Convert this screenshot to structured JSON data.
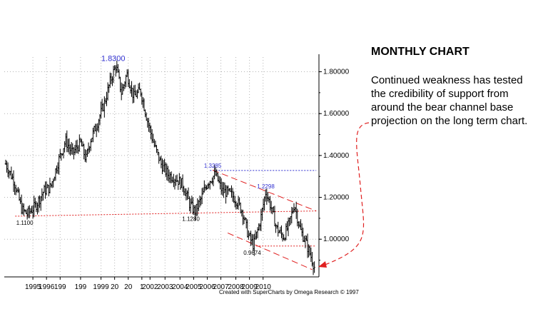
{
  "panel": {
    "title": "MONTHLY CHART",
    "body": "Continued weakness has tested the credibility of support from around the bear channel base projection on the long term chart."
  },
  "credit": "Created with SuperCharts by Omega Research © 1997",
  "colors": {
    "price": "#000000",
    "grid": "#b4b4b4",
    "channel": "#e02020",
    "blue": "#3030d0"
  },
  "chart_data": {
    "type": "bar",
    "style": "OHLC monthly bars",
    "title": "",
    "xlabel": "",
    "ylabel": "",
    "ylim": [
      0.82,
      1.87
    ],
    "grid": true,
    "y_ticks": [
      {
        "value": 1.8,
        "label": "1.80000"
      },
      {
        "value": 1.6,
        "label": "1.60000"
      },
      {
        "value": 1.4,
        "label": "1.40000"
      },
      {
        "value": 1.2,
        "label": "1.20000"
      },
      {
        "value": 1.0,
        "label": "1.00000"
      }
    ],
    "x_ticks": [
      {
        "year": 1995,
        "label": "1995"
      },
      {
        "year": 1996,
        "label": "1996"
      },
      {
        "year": 1997,
        "label": "199"
      },
      {
        "year": 1998.5,
        "label": "199"
      },
      {
        "year": 2000,
        "label": "1999"
      },
      {
        "year": 2001,
        "label": "20"
      },
      {
        "year": 2002,
        "label": "20"
      },
      {
        "year": 2003,
        "label": "1"
      },
      {
        "year": 2003.6,
        "label": "2002"
      },
      {
        "year": 2004.7,
        "label": "2003"
      },
      {
        "year": 2005.8,
        "label": "2004"
      },
      {
        "year": 2006.8,
        "label": "2005"
      },
      {
        "year": 2007.8,
        "label": "2006"
      },
      {
        "year": 2008.8,
        "label": "2007"
      },
      {
        "year": 2009.9,
        "label": "2008"
      },
      {
        "year": 2010.9,
        "label": "2009"
      },
      {
        "year": 2011.9,
        "label": "2010"
      }
    ],
    "price_path": [
      [
        1993.0,
        1.36
      ],
      [
        1993.6,
        1.28
      ],
      [
        1994.2,
        1.14
      ],
      [
        1994.6,
        1.12
      ],
      [
        1995.2,
        1.16
      ],
      [
        1995.8,
        1.23
      ],
      [
        1996.3,
        1.25
      ],
      [
        1996.9,
        1.38
      ],
      [
        1997.4,
        1.47
      ],
      [
        1997.9,
        1.41
      ],
      [
        1998.5,
        1.46
      ],
      [
        1998.9,
        1.38
      ],
      [
        1999.2,
        1.47
      ],
      [
        1999.7,
        1.55
      ],
      [
        2000.3,
        1.66
      ],
      [
        2000.7,
        1.76
      ],
      [
        2001.1,
        1.83
      ],
      [
        2001.5,
        1.7
      ],
      [
        2001.9,
        1.79
      ],
      [
        2002.4,
        1.68
      ],
      [
        2002.9,
        1.71
      ],
      [
        2003.4,
        1.57
      ],
      [
        2003.9,
        1.45
      ],
      [
        2004.4,
        1.36
      ],
      [
        2004.9,
        1.31
      ],
      [
        2005.5,
        1.29
      ],
      [
        2006.0,
        1.26
      ],
      [
        2006.5,
        1.17
      ],
      [
        2006.9,
        1.13
      ],
      [
        2007.4,
        1.2
      ],
      [
        2007.8,
        1.27
      ],
      [
        2008.4,
        1.31
      ],
      [
        2008.9,
        1.23
      ],
      [
        2009.4,
        1.22
      ],
      [
        2009.9,
        1.19
      ],
      [
        2010.4,
        1.13
      ],
      [
        2010.8,
        1.02
      ],
      [
        2011.2,
        0.97
      ],
      [
        2011.7,
        1.09
      ],
      [
        2012.1,
        1.23
      ],
      [
        2012.5,
        1.15
      ],
      [
        2012.9,
        1.05
      ],
      [
        2013.4,
        1.01
      ],
      [
        2013.8,
        1.07
      ],
      [
        2014.2,
        1.17
      ],
      [
        2014.6,
        1.05
      ],
      [
        2015.0,
        0.99
      ],
      [
        2015.4,
        0.92
      ],
      [
        2015.7,
        0.86
      ]
    ],
    "annotations": [
      {
        "text": "1.8300",
        "year": 2000.9,
        "value": 1.83,
        "color": "blue"
      },
      {
        "text": "1.3285",
        "year": 2008.2,
        "value": 1.3285,
        "color": "blue"
      },
      {
        "text": "1.2298",
        "year": 2012.1,
        "value": 1.2298,
        "color": "blue"
      },
      {
        "text": "1.1100",
        "year": 1994.4,
        "value": 1.11,
        "color": "red"
      },
      {
        "text": "1.1280",
        "year": 2006.6,
        "value": 1.128,
        "color": "red"
      },
      {
        "text": "0.9674",
        "year": 2011.1,
        "value": 0.9674,
        "color": "red"
      }
    ],
    "lines": [
      {
        "name": "1.3285 resistance",
        "style": "dotted",
        "color": "blue",
        "from": [
          2008.0,
          1.3285
        ],
        "to": [
          2015.8,
          1.3285
        ]
      },
      {
        "name": "long-term support",
        "style": "dotted",
        "color": "red",
        "from": [
          1993.7,
          1.11
        ],
        "to": [
          2015.8,
          1.135
        ]
      },
      {
        "name": "0.9674 level",
        "style": "dotted",
        "color": "red",
        "from": [
          2011.4,
          0.9674
        ],
        "to": [
          2015.8,
          0.9674
        ]
      },
      {
        "name": "channel top",
        "style": "dashed",
        "color": "red",
        "from": [
          2008.2,
          1.33
        ],
        "to": [
          2015.8,
          1.135
        ]
      },
      {
        "name": "channel base",
        "style": "dashed",
        "color": "red",
        "from": [
          2009.3,
          1.03
        ],
        "to": [
          2015.5,
          0.855
        ]
      }
    ]
  }
}
